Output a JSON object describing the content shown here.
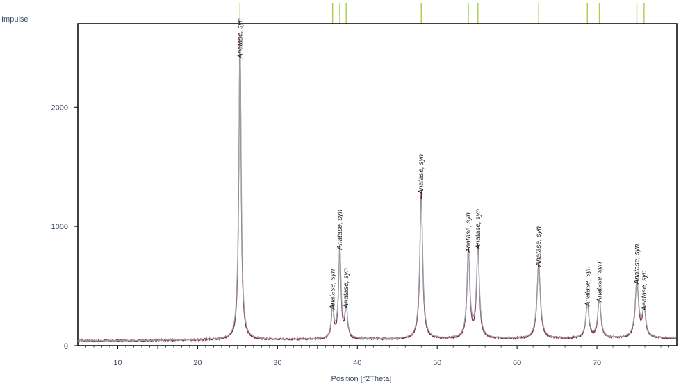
{
  "chart_data": {
    "type": "line",
    "ylabel": "Impulse",
    "xlabel": "Position [°2Theta]",
    "xlim": [
      5,
      80
    ],
    "ylim": [
      0,
      2700
    ],
    "x_ticks": [
      10,
      20,
      30,
      40,
      50,
      60,
      70
    ],
    "y_ticks": [
      0,
      1000,
      2000
    ],
    "baseline": 45,
    "colors": {
      "measured": "#7a2048",
      "calculated": "#9aa0a6",
      "reference_marker": "#a6cf4a",
      "axis": "#000000"
    },
    "reference_lines": [
      25.3,
      36.9,
      37.8,
      38.6,
      48.0,
      53.9,
      55.1,
      62.7,
      68.8,
      70.3,
      75.0,
      75.9
    ],
    "peaks": [
      {
        "x": 25.3,
        "y": 2600,
        "width": 0.16,
        "label": "Anatase, syn"
      },
      {
        "x": 36.9,
        "y": 270,
        "width": 0.17,
        "label": "Anatase, syn"
      },
      {
        "x": 37.8,
        "y": 770,
        "width": 0.17,
        "label": "Anatase, syn"
      },
      {
        "x": 38.6,
        "y": 280,
        "width": 0.17,
        "label": "Anatase, syn"
      },
      {
        "x": 48.0,
        "y": 1235,
        "width": 0.2,
        "label": "Anatase, syn"
      },
      {
        "x": 53.9,
        "y": 745,
        "width": 0.2,
        "label": "Anatase, syn"
      },
      {
        "x": 55.1,
        "y": 775,
        "width": 0.2,
        "label": "Anatase, syn"
      },
      {
        "x": 62.7,
        "y": 630,
        "width": 0.24,
        "label": "Anatase, syn"
      },
      {
        "x": 68.8,
        "y": 295,
        "width": 0.22,
        "label": "Anatase, syn"
      },
      {
        "x": 70.3,
        "y": 330,
        "width": 0.22,
        "label": "Anatase, syn"
      },
      {
        "x": 75.0,
        "y": 480,
        "width": 0.24,
        "label": "Anatase, syn"
      },
      {
        "x": 75.9,
        "y": 260,
        "width": 0.22,
        "label": "Anatase, syn"
      }
    ]
  }
}
